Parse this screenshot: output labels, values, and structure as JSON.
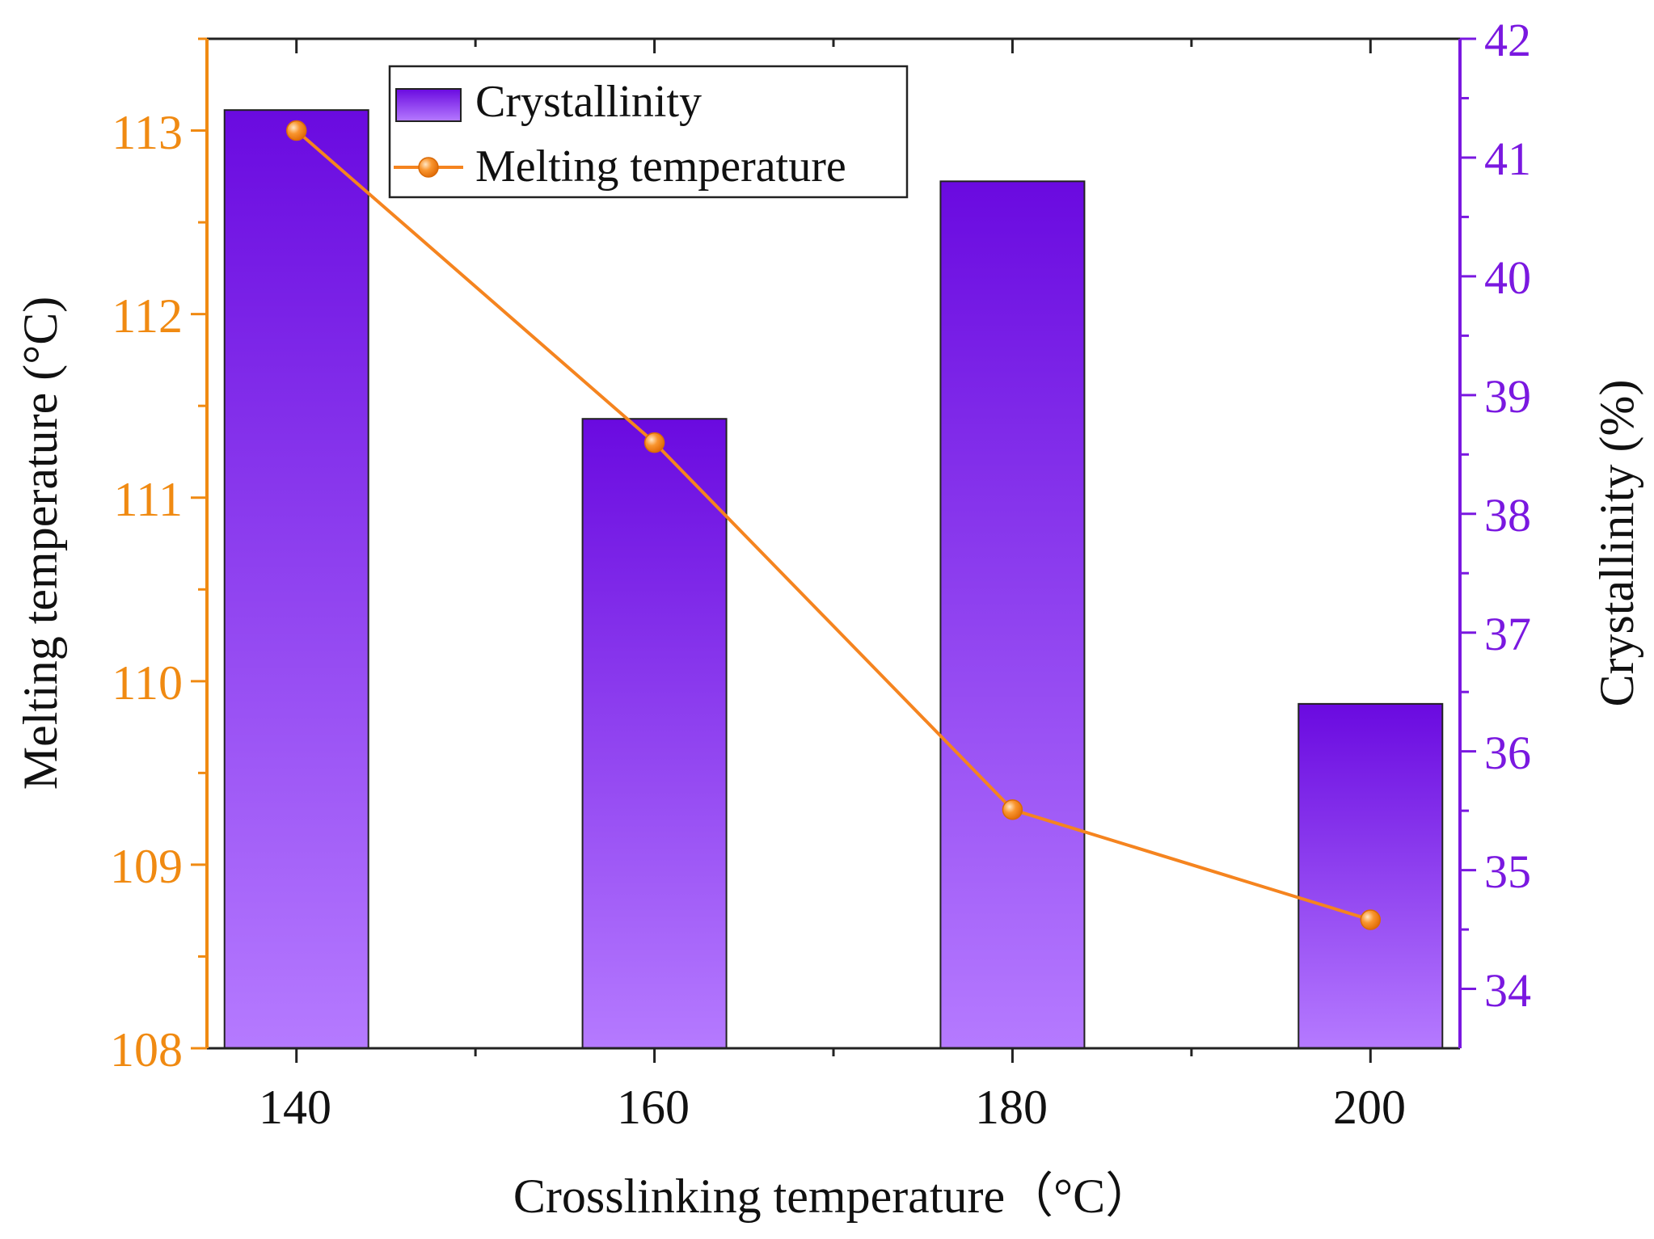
{
  "chart_data": {
    "type": "bar",
    "title": "",
    "categories": [
      "140",
      "160",
      "180",
      "200"
    ],
    "x": [
      140,
      160,
      180,
      200
    ],
    "xlabel": "Crosslinking temperature（°C）",
    "xlim": [
      135,
      205
    ],
    "x_ticks": [
      "140",
      "160",
      "180",
      "200"
    ],
    "series": [
      {
        "name": "Crystallinity",
        "type": "bar",
        "axis": "right",
        "values": [
          41.4,
          38.8,
          40.8,
          36.4
        ]
      },
      {
        "name": "Melting temperature",
        "type": "line",
        "axis": "left",
        "values": [
          113.0,
          111.3,
          109.3,
          108.7
        ]
      }
    ],
    "ylabel_left": "Melting temperature (°C)",
    "ylim_left": [
      108,
      113.5
    ],
    "y_ticks_left": [
      "108",
      "109",
      "110",
      "111",
      "112",
      "113"
    ],
    "ylabel_right": "Crystallinity (%)",
    "ylim_right": [
      33.5,
      42
    ],
    "y_ticks_right": [
      "34",
      "35",
      "36",
      "37",
      "38",
      "39",
      "40",
      "41",
      "42"
    ],
    "legend_position": "top-left",
    "grid": false,
    "colors": {
      "left_axis": "#f08a12",
      "right_axis": "#7a18e0",
      "line": "#f5841f",
      "bar_top": "#6a0ae0",
      "bar_bottom": "#b57aff"
    }
  }
}
